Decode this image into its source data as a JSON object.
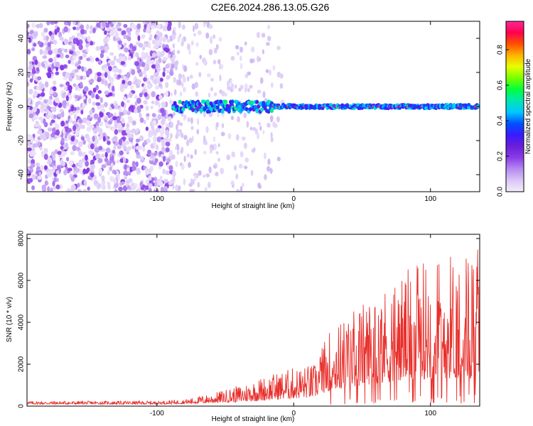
{
  "title": "C2E6.2024.286.13.05.G26",
  "chart_data": [
    {
      "type": "heatmap",
      "title": "C2E6.2024.286.13.05.G26",
      "xlabel": "Height of straight line (km)",
      "ylabel": "Frequency (Hz)",
      "xlim": [
        -195,
        136
      ],
      "ylim": [
        -50,
        50
      ],
      "x_ticks": [
        {
          "value": -100,
          "label": "-100"
        },
        {
          "value": 0,
          "label": "0"
        },
        {
          "value": 100,
          "label": "100"
        }
      ],
      "y_ticks": [
        {
          "value": 40,
          "label": "40"
        },
        {
          "value": 20,
          "label": "20"
        },
        {
          "value": 0,
          "label": "0"
        },
        {
          "value": -20,
          "label": "-20"
        },
        {
          "value": -40,
          "label": "-40"
        }
      ],
      "colorbar": {
        "label": "Normalized spectral amplitude",
        "range": [
          0.0,
          0.96
        ],
        "ticks": [
          {
            "value": 0.0,
            "label": "0.0"
          },
          {
            "value": 0.2,
            "label": "0.2"
          },
          {
            "value": 0.4,
            "label": "0.4"
          },
          {
            "value": 0.6,
            "label": "0.6"
          },
          {
            "value": 0.8,
            "label": "0.8"
          }
        ],
        "colors": [
          "#f4eefc",
          "#d9c6f6",
          "#b58bf0",
          "#8a3ce8",
          "#6a1ed8",
          "#3a1aff",
          "#0050ff",
          "#00c8ff",
          "#00e6b4",
          "#00ff3c",
          "#78ff00",
          "#e6ff00",
          "#ffb400",
          "#ff5000",
          "#ff0050",
          "#ff2896"
        ]
      },
      "description_of_pattern": {
        "noise_region_x": [
          -195,
          -88
        ],
        "noise_amplitude": [
          0.0,
          0.2
        ],
        "transition_region_x": [
          -88,
          -15
        ],
        "line_frequency_hz": 0,
        "line_start_x": -88,
        "line_peak_amplitude": 0.95
      }
    },
    {
      "type": "line",
      "xlabel": "Height of straight line (km)",
      "ylabel": "SNR (10 * v/v)",
      "xlim": [
        -195,
        136
      ],
      "ylim": [
        0,
        8200
      ],
      "color": "#e8302c",
      "x_ticks": [
        {
          "value": -100,
          "label": "-100"
        },
        {
          "value": 0,
          "label": "0"
        },
        {
          "value": 100,
          "label": "100"
        }
      ],
      "y_ticks": [
        {
          "value": 0,
          "label": "0"
        },
        {
          "value": 2000,
          "label": "2000"
        },
        {
          "value": 4000,
          "label": "4000"
        },
        {
          "value": 6000,
          "label": "6000"
        },
        {
          "value": 8000,
          "label": "8000"
        }
      ],
      "envelope": [
        {
          "x": -195,
          "base": 150,
          "amp": 150
        },
        {
          "x": -100,
          "base": 150,
          "amp": 160
        },
        {
          "x": -80,
          "base": 180,
          "amp": 220
        },
        {
          "x": -60,
          "base": 250,
          "amp": 450
        },
        {
          "x": -40,
          "base": 320,
          "amp": 800
        },
        {
          "x": -20,
          "base": 450,
          "amp": 1200
        },
        {
          "x": 0,
          "base": 600,
          "amp": 1500
        },
        {
          "x": 15,
          "base": 700,
          "amp": 1600
        },
        {
          "x": 25,
          "base": 1200,
          "amp": 2800
        },
        {
          "x": 40,
          "base": 1500,
          "amp": 3600
        },
        {
          "x": 60,
          "base": 1800,
          "amp": 4300
        },
        {
          "x": 80,
          "base": 2000,
          "amp": 5200
        },
        {
          "x": 100,
          "base": 2200,
          "amp": 5800
        },
        {
          "x": 120,
          "base": 2200,
          "amp": 6200
        },
        {
          "x": 136,
          "base": 2200,
          "amp": 6300
        }
      ]
    }
  ]
}
